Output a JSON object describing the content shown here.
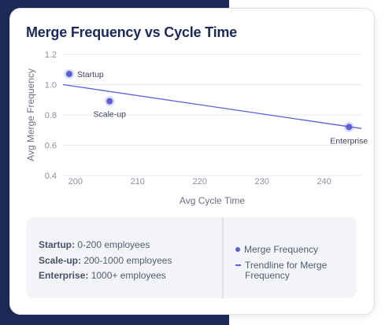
{
  "colors": {
    "accent": "#5b5fd4",
    "title": "#1b2a57",
    "background_dark": "#1b2a57"
  },
  "chart_data": {
    "type": "scatter",
    "title": "Merge Frequency vs Cycle Time",
    "xlabel": "Avg Cycle Time",
    "ylabel": "Avg Merge Frequency",
    "xlim": [
      198,
      246
    ],
    "ylim": [
      0.4,
      1.2
    ],
    "xticks": [
      200,
      210,
      220,
      230,
      240
    ],
    "yticks": [
      0.4,
      0.6,
      0.8,
      1.0,
      1.2
    ],
    "ytick_labels": [
      "0.4",
      "0.6",
      "0.8",
      "1.0",
      "1.2"
    ],
    "grid": true,
    "points": [
      {
        "label": "Startup",
        "x": 199,
        "y": 1.07
      },
      {
        "label": "Scale-up",
        "x": 205.5,
        "y": 0.89
      },
      {
        "label": "Enterprise",
        "x": 244,
        "y": 0.72
      }
    ],
    "trendline": {
      "x": [
        198,
        246
      ],
      "y": [
        1.0,
        0.71
      ]
    },
    "legend": [
      {
        "label": "Merge Frequency",
        "marker": "dot"
      },
      {
        "label": "Trendline for Merge Frequency",
        "marker": "line"
      }
    ]
  },
  "notes": [
    {
      "term": "Startup:",
      "desc": " 0-200 employees"
    },
    {
      "term": "Scale-up:",
      "desc": " 200-1000 employees"
    },
    {
      "term": "Enterprise:",
      "desc": " 1000+ employees"
    }
  ]
}
